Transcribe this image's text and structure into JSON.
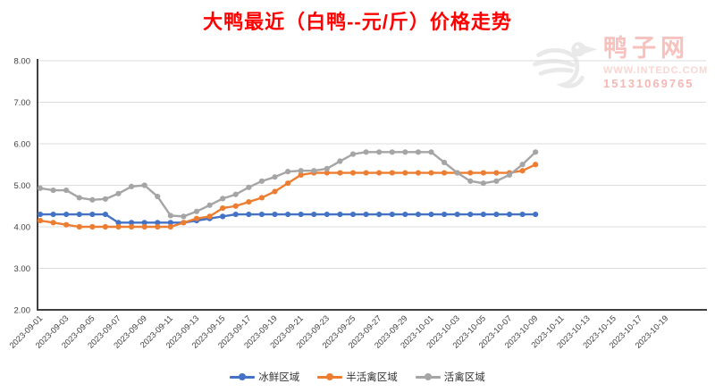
{
  "page": {
    "background": "#ffffff"
  },
  "watermark": {
    "site_name": "鸭子网",
    "website": "WWW.INTEDC.COM",
    "phone": "15131069765",
    "logo": "duck-icon",
    "text_color": "#f6b7b2",
    "logo_color": "#d8d8d8"
  },
  "chart_data": {
    "type": "line",
    "title": "大鸭最近（白鸭--元/斤）价格走势",
    "title_color": "#ff0000",
    "xlabel": "",
    "ylabel": "",
    "ylim": [
      2.0,
      8.0
    ],
    "grid": true,
    "legend_position": "bottom",
    "gridline_color": "#dcdcdc",
    "axis_color": "#404040",
    "tick_label_color": "#404040",
    "y_ticks": [
      {
        "v": 8,
        "label": "8.00"
      },
      {
        "v": 7,
        "label": "7.00"
      },
      {
        "v": 6,
        "label": "6.00"
      },
      {
        "v": 5,
        "label": "5.00"
      },
      {
        "v": 4,
        "label": "4.00"
      },
      {
        "v": 3,
        "label": "3.00"
      },
      {
        "v": 2,
        "label": "2.00"
      }
    ],
    "x_tick_labels": [
      "2023-09-01",
      "2023-09-03",
      "2023-09-05",
      "2023-09-07",
      "2023-09-09",
      "2023-09-11",
      "2023-09-13",
      "2023-09-15",
      "2023-09-17",
      "2023-09-19",
      "2023-09-21",
      "2023-09-23",
      "2023-09-25",
      "2023-09-27",
      "2023-09-29",
      "2023-10-01",
      "2023-10-03",
      "2023-10-05",
      "2023-10-07",
      "2023-10-09",
      "2023-10-11",
      "2023-10-13",
      "2023-10-15",
      "2023-10-17",
      "2023-10-19"
    ],
    "dates": [
      "2023-09-01",
      "2023-09-02",
      "2023-09-03",
      "2023-09-04",
      "2023-09-05",
      "2023-09-06",
      "2023-09-07",
      "2023-09-08",
      "2023-09-09",
      "2023-09-10",
      "2023-09-11",
      "2023-09-12",
      "2023-09-13",
      "2023-09-14",
      "2023-09-15",
      "2023-09-16",
      "2023-09-17",
      "2023-09-18",
      "2023-09-19",
      "2023-09-20",
      "2023-09-21",
      "2023-09-22",
      "2023-09-23",
      "2023-09-24",
      "2023-09-25",
      "2023-09-26",
      "2023-09-27",
      "2023-09-28",
      "2023-09-29",
      "2023-09-30",
      "2023-10-01",
      "2023-10-02",
      "2023-10-03",
      "2023-10-04",
      "2023-10-05",
      "2023-10-06",
      "2023-10-07",
      "2023-10-08",
      "2023-10-09"
    ],
    "series": [
      {
        "name": "冰鲜区域",
        "color": "#4472C4",
        "values": [
          4.3,
          4.3,
          4.3,
          4.3,
          4.3,
          4.3,
          4.1,
          4.1,
          4.1,
          4.1,
          4.1,
          4.1,
          4.15,
          4.2,
          4.25,
          4.3,
          4.3,
          4.3,
          4.3,
          4.3,
          4.3,
          4.3,
          4.3,
          4.3,
          4.3,
          4.3,
          4.3,
          4.3,
          4.3,
          4.3,
          4.3,
          4.3,
          4.3,
          4.3,
          4.3,
          4.3,
          4.3,
          4.3,
          4.3
        ]
      },
      {
        "name": "半活禽区域",
        "color": "#ED7D31",
        "values": [
          4.15,
          4.1,
          4.05,
          4.0,
          4.0,
          4.0,
          4.0,
          4.0,
          4.0,
          4.0,
          4.0,
          4.1,
          4.2,
          4.25,
          4.45,
          4.5,
          4.6,
          4.7,
          4.85,
          5.05,
          5.25,
          5.3,
          5.3,
          5.3,
          5.3,
          5.3,
          5.3,
          5.3,
          5.3,
          5.3,
          5.3,
          5.3,
          5.3,
          5.3,
          5.3,
          5.3,
          5.3,
          5.35,
          5.5
        ]
      },
      {
        "name": "活禽区域",
        "color": "#A5A5A5",
        "values": [
          4.93,
          4.88,
          4.88,
          4.7,
          4.65,
          4.67,
          4.8,
          4.97,
          5.0,
          4.73,
          4.27,
          4.25,
          4.37,
          4.52,
          4.68,
          4.78,
          4.95,
          5.1,
          5.2,
          5.33,
          5.35,
          5.35,
          5.4,
          5.58,
          5.75,
          5.8,
          5.8,
          5.8,
          5.8,
          5.8,
          5.8,
          5.55,
          5.3,
          5.1,
          5.05,
          5.1,
          5.25,
          5.5,
          5.8
        ]
      }
    ]
  }
}
